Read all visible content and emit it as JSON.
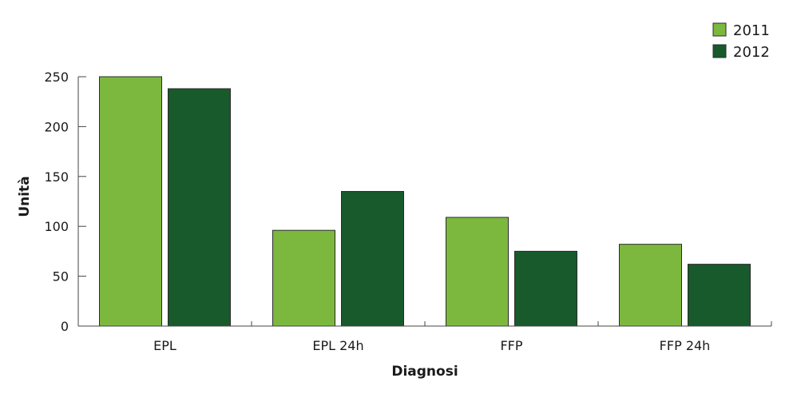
{
  "chart_data": {
    "type": "bar",
    "categories": [
      "EPL",
      "EPL 24h",
      "FFP",
      "FFP 24h"
    ],
    "series": [
      {
        "name": "2011",
        "color": "#7cb83e",
        "values": [
          250,
          96,
          109,
          82
        ]
      },
      {
        "name": "2012",
        "color": "#185a2b",
        "values": [
          238,
          135,
          75,
          62
        ]
      }
    ],
    "xlabel": "Diagnosi",
    "ylabel": "Unità",
    "ylim": [
      0,
      250
    ],
    "yticks": [
      0,
      50,
      100,
      150,
      200,
      250
    ],
    "grid": false,
    "legend": "top-right"
  }
}
